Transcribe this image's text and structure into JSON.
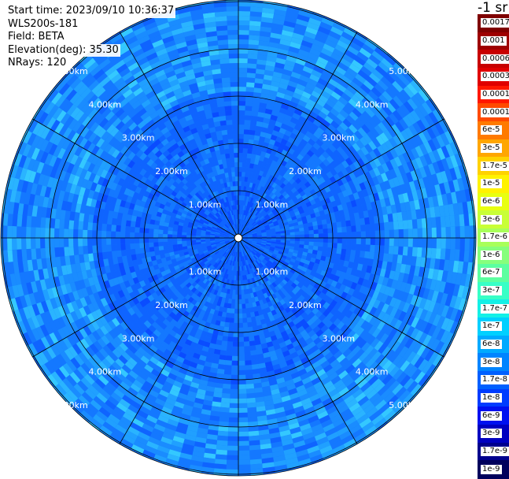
{
  "header": {
    "start_time": "Start time: 2023/09/10 10:36:37",
    "instrument": "WLS200s-181",
    "field": "Field: BETA",
    "elevation": "Elevation(deg): 35.30",
    "nrays": "NRays: 120"
  },
  "colorbar": {
    "units": "-1 sr",
    "labels": [
      "0.0017",
      "0.001",
      "0.0006",
      "0.0003",
      "0.00017",
      "0.0001",
      "6e-5",
      "3e-5",
      "1.7e-5",
      "1e-5",
      "6e-6",
      "3e-6",
      "1.7e-6",
      "1e-6",
      "6e-7",
      "3e-7",
      "1.7e-7",
      "1e-7",
      "6e-8",
      "3e-8",
      "1.7e-8",
      "1e-8",
      "6e-9",
      "3e-9",
      "1.7e-9",
      "1e-9"
    ],
    "colors": [
      "#7f0000",
      "#9e0000",
      "#c80000",
      "#e00000",
      "#ff1800",
      "#ff4a00",
      "#ff7a00",
      "#ffa600",
      "#ffd200",
      "#fff200",
      "#e8ff10",
      "#c8ff36",
      "#a8ff5a",
      "#86ff7c",
      "#5cffa0",
      "#38ffc6",
      "#14f0e6",
      "#00d0ff",
      "#00aaff",
      "#0084ff",
      "#0060ff",
      "#003cff",
      "#0010f0",
      "#0000c0",
      "#00008e",
      "#00005c"
    ]
  },
  "plot": {
    "range_labels": [
      "1.00km",
      "2.00km",
      "3.00km",
      "4.00km",
      "5.00km"
    ],
    "range_ring_values_km": [
      1,
      2,
      3,
      4,
      5
    ],
    "max_range_km": 5.85,
    "n_rays": 120,
    "spoke_azimuths_deg": [
      0,
      30,
      60,
      90,
      120,
      150,
      180,
      210,
      240,
      270,
      300,
      330
    ],
    "data_palette": [
      "#0a4cff",
      "#0f64ff",
      "#1478ff",
      "#1a8cff",
      "#20a0ff",
      "#2ab4ff",
      "#34c8ff",
      "#0038e8"
    ]
  }
}
